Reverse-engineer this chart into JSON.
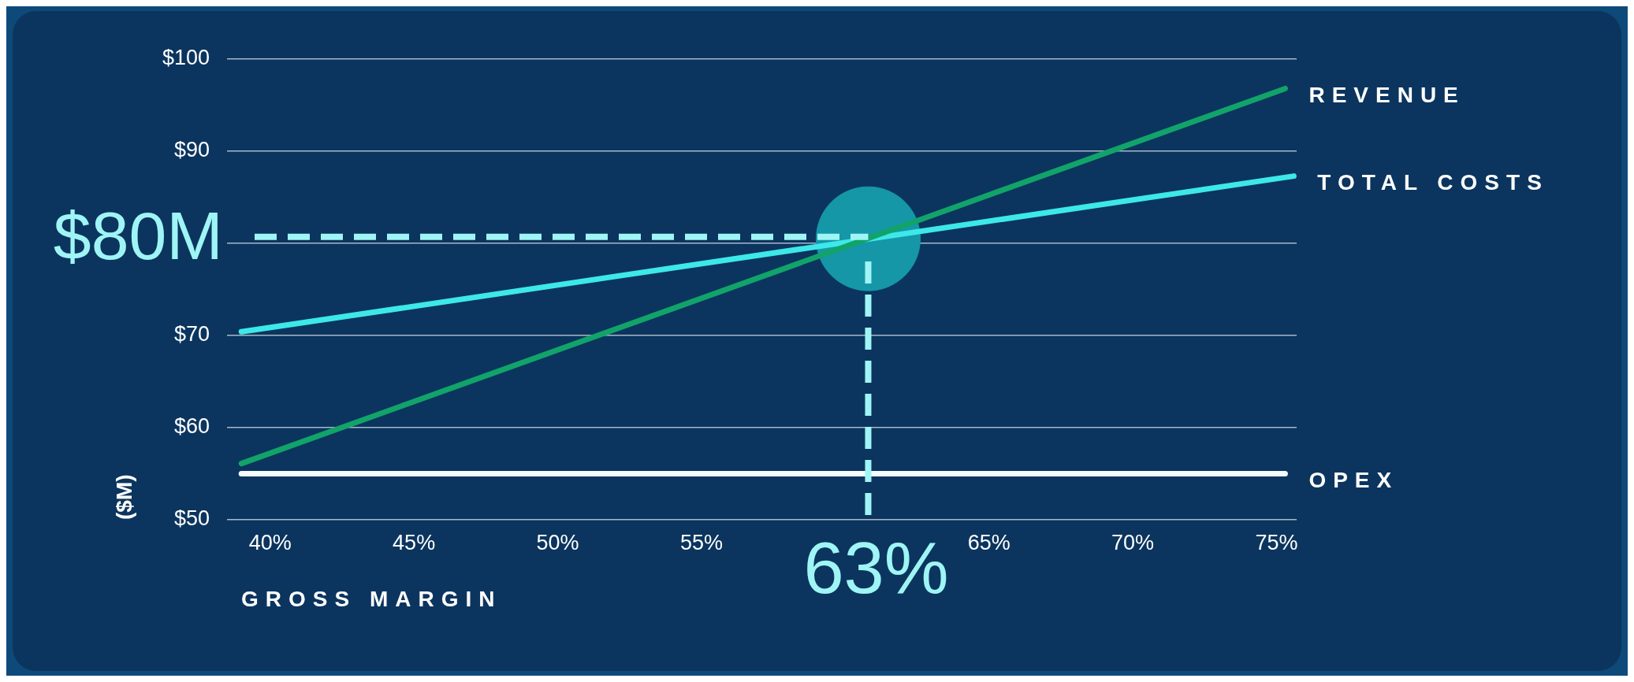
{
  "chart_data": {
    "type": "line",
    "xlabel": "GROSS MARGIN",
    "ylabel": "($M)",
    "xlim": [
      38.5,
      75.7
    ],
    "xticks": [
      {
        "value": 40,
        "label": "40%"
      },
      {
        "value": 45,
        "label": "45%"
      },
      {
        "value": 50,
        "label": "50%"
      },
      {
        "value": 55,
        "label": "55%"
      },
      {
        "value": 65,
        "label": "65%"
      },
      {
        "value": 70,
        "label": "70%"
      },
      {
        "value": 75,
        "label": "75%"
      }
    ],
    "ylim": [
      50,
      100
    ],
    "yticks": [
      {
        "value": 50,
        "label": "$50"
      },
      {
        "value": 60,
        "label": "$60"
      },
      {
        "value": 70,
        "label": "$70"
      },
      {
        "value": 80,
        "label": null
      },
      {
        "value": 90,
        "label": "$90"
      },
      {
        "value": 100,
        "label": "$100"
      }
    ],
    "grid": "y",
    "series": [
      {
        "type": "scatter",
        "x": [
          60.8
        ],
        "values": [
          80.5
        ],
        "color": "#1597a8"
      },
      {
        "name": "REVENUE",
        "x": [
          39,
          75.3
        ],
        "values": [
          56.1,
          96.8
        ],
        "color": "#12a36a"
      },
      {
        "name": "TOTAL COSTS",
        "x": [
          39,
          75.6
        ],
        "values": [
          70.4,
          87.3
        ],
        "color": "#3de8e8"
      },
      {
        "name": "OPEX",
        "x": [
          39,
          75.3
        ],
        "values": [
          55,
          55
        ],
        "color": "#f4fbff"
      }
    ],
    "ref_lines": [
      {
        "axis": "y",
        "value": 80.7,
        "label": "$80M",
        "color": "#9ff5f5",
        "line_style": "dashed"
      },
      {
        "axis": "x",
        "value": 60.8,
        "color": "#9ff5f5",
        "line_style": "dashed"
      }
    ],
    "annotations": [
      "63%"
    ]
  }
}
